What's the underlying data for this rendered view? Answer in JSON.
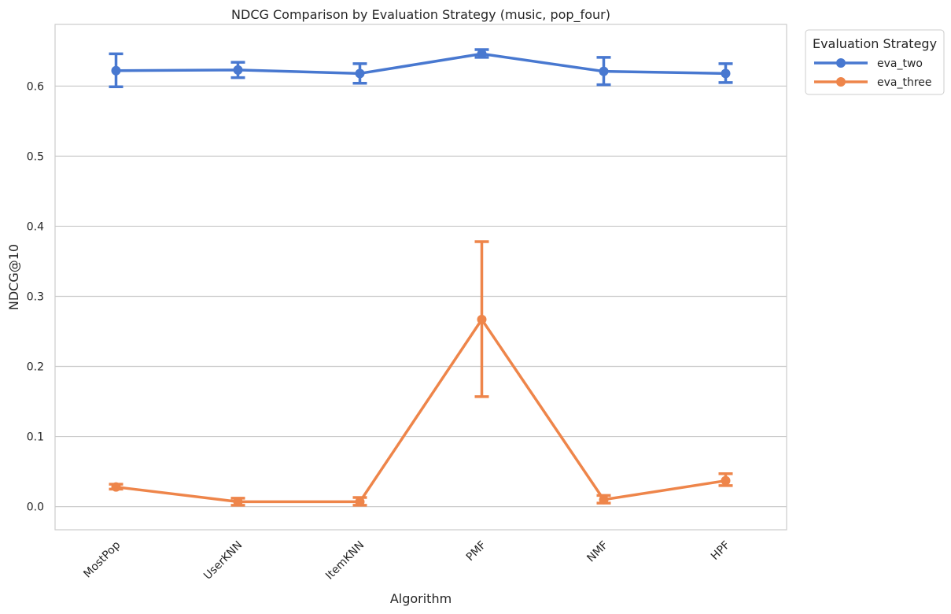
{
  "chart_data": {
    "type": "line",
    "title": "NDCG Comparison by Evaluation Strategy (music, pop_four)",
    "xlabel": "Algorithm",
    "ylabel": "NDCG@10",
    "categories": [
      "MostPop",
      "UserKNN",
      "ItemKNN",
      "PMF",
      "NMF",
      "HPF"
    ],
    "ylim": [
      -0.033,
      0.688
    ],
    "yticks": [
      0.0,
      0.1,
      0.2,
      0.3,
      0.4,
      0.5,
      0.6
    ],
    "ytick_labels": [
      "0.0",
      "0.1",
      "0.2",
      "0.3",
      "0.4",
      "0.5",
      "0.6"
    ],
    "grid": true,
    "legend": {
      "title": "Evaluation Strategy",
      "placement": "outside-top-right"
    },
    "series": [
      {
        "name": "eva_two",
        "color": "#4878d0",
        "values": [
          0.622,
          0.623,
          0.618,
          0.646,
          0.621,
          0.618
        ],
        "err_low": [
          0.599,
          0.612,
          0.604,
          0.641,
          0.602,
          0.605
        ],
        "err_high": [
          0.646,
          0.634,
          0.632,
          0.652,
          0.641,
          0.632
        ]
      },
      {
        "name": "eva_three",
        "color": "#ee854a",
        "values": [
          0.028,
          0.007,
          0.007,
          0.267,
          0.01,
          0.037
        ],
        "err_low": [
          0.025,
          0.002,
          0.002,
          0.157,
          0.005,
          0.03
        ],
        "err_high": [
          0.032,
          0.012,
          0.013,
          0.378,
          0.016,
          0.047
        ]
      }
    ]
  }
}
